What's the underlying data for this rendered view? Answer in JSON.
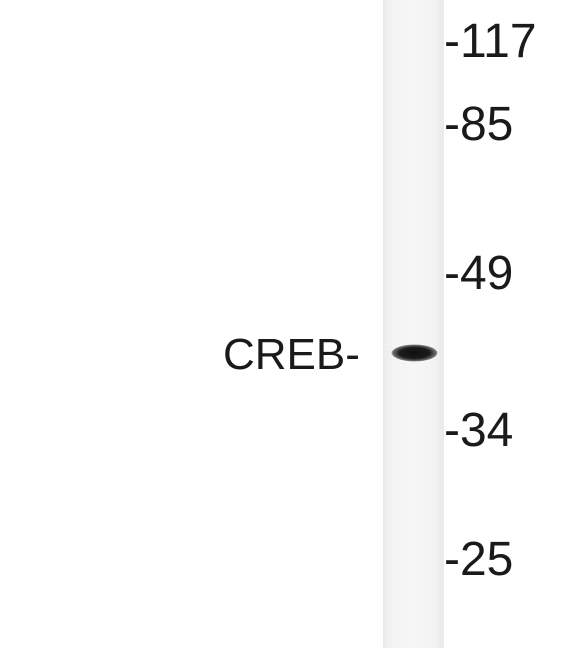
{
  "figure": {
    "type": "western-blot",
    "target_label": "CREB-",
    "markers": [
      {
        "label": "-117"
      },
      {
        "label": "-85"
      },
      {
        "label": "-49"
      },
      {
        "label": "-34"
      },
      {
        "label": "-25"
      }
    ],
    "colors": {
      "background": "#ffffff",
      "text": "#1a1a1a",
      "lane": "#f5f5f5",
      "band": "#151515"
    }
  }
}
